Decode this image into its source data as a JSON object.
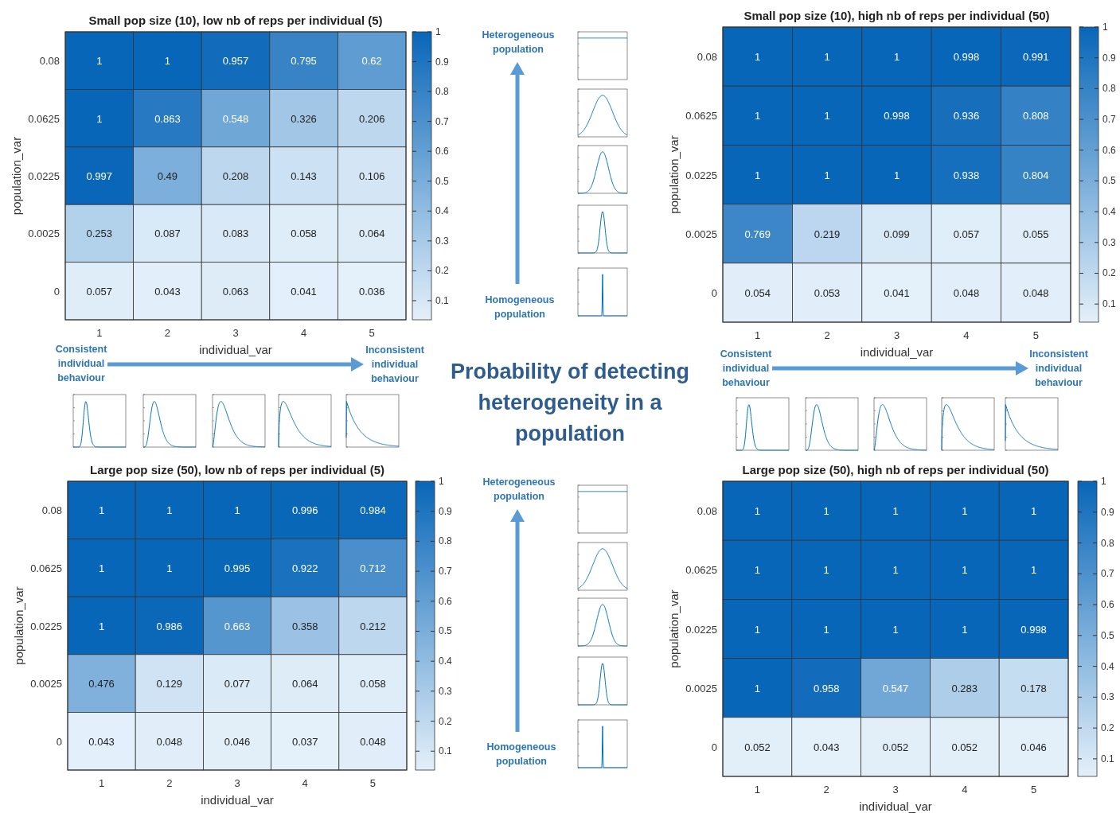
{
  "chart_data": [
    {
      "type": "heatmap",
      "title": "Small pop size (10), low nb of reps per individual (5)",
      "xlabel": "individual_var",
      "ylabel": "population_var",
      "categories": [
        "1",
        "2",
        "3",
        "4",
        "5"
      ],
      "y_categories": [
        "0.08",
        "0.0625",
        "0.0225",
        "0.0025",
        "0"
      ],
      "cells": [
        [
          1,
          1,
          0.957,
          0.795,
          0.62
        ],
        [
          1,
          0.863,
          0.548,
          0.326,
          0.206
        ],
        [
          0.997,
          0.49,
          0.208,
          0.143,
          0.106
        ],
        [
          0.253,
          0.087,
          0.083,
          0.058,
          0.064
        ],
        [
          0.057,
          0.043,
          0.063,
          0.041,
          0.036
        ]
      ],
      "clim": [
        0.036,
        1
      ],
      "cticks": [
        0.1,
        0.2,
        0.3,
        0.4,
        0.5,
        0.6,
        0.7,
        0.8,
        0.9,
        1
      ],
      "data_labels": true,
      "annotations": [
        "Consistent individual behaviour",
        "Inconsistent individual behaviour",
        "Heterogeneous population",
        "Homogeneous population"
      ]
    },
    {
      "type": "heatmap",
      "title": "Small pop size (10), high nb of reps per individual (50)",
      "xlabel": "individual_var",
      "ylabel": "population_var",
      "categories": [
        "1",
        "2",
        "3",
        "4",
        "5"
      ],
      "y_categories": [
        "0.08",
        "0.0625",
        "0.0225",
        "0.0025",
        "0"
      ],
      "cells": [
        [
          1,
          1,
          1,
          0.998,
          0.991
        ],
        [
          1,
          1,
          0.998,
          0.936,
          0.808
        ],
        [
          1,
          1,
          1,
          0.938,
          0.804
        ],
        [
          0.769,
          0.219,
          0.099,
          0.057,
          0.055
        ],
        [
          0.054,
          0.053,
          0.041,
          0.048,
          0.048
        ]
      ],
      "clim": [
        0.041,
        1
      ],
      "cticks": [
        0.1,
        0.2,
        0.3,
        0.4,
        0.5,
        0.6,
        0.7,
        0.8,
        0.9,
        1
      ],
      "data_labels": true,
      "annotations": [
        "Consistent individual behaviour",
        "Inconsistent individual behaviour"
      ]
    },
    {
      "type": "heatmap",
      "title": "Large pop size (50), low nb of reps per individual (5)",
      "xlabel": "individual_var",
      "ylabel": "population_var",
      "categories": [
        "1",
        "2",
        "3",
        "4",
        "5"
      ],
      "y_categories": [
        "0.08",
        "0.0625",
        "0.0225",
        "0.0025",
        "0"
      ],
      "cells": [
        [
          1,
          1,
          1,
          0.996,
          0.984
        ],
        [
          1,
          1,
          0.995,
          0.922,
          0.712
        ],
        [
          1,
          0.986,
          0.663,
          0.358,
          0.212
        ],
        [
          0.476,
          0.129,
          0.077,
          0.064,
          0.058
        ],
        [
          0.043,
          0.048,
          0.046,
          0.037,
          0.048
        ]
      ],
      "clim": [
        0.037,
        1
      ],
      "cticks": [
        0.1,
        0.2,
        0.3,
        0.4,
        0.5,
        0.6,
        0.7,
        0.8,
        0.9,
        1
      ],
      "data_labels": true,
      "annotations": [
        "Heterogeneous population",
        "Homogeneous population"
      ]
    },
    {
      "type": "heatmap",
      "title": "Large pop size (50), high nb of reps per individual (50)",
      "xlabel": "individual_var",
      "ylabel": "population_var",
      "categories": [
        "1",
        "2",
        "3",
        "4",
        "5"
      ],
      "y_categories": [
        "0.08",
        "0.0625",
        "0.0225",
        "0.0025",
        "0"
      ],
      "cells": [
        [
          1,
          1,
          1,
          1,
          1
        ],
        [
          1,
          1,
          1,
          1,
          1
        ],
        [
          1,
          1,
          1,
          1,
          0.998
        ],
        [
          1,
          0.958,
          0.547,
          0.283,
          0.178
        ],
        [
          0.052,
          0.043,
          0.052,
          0.052,
          0.046
        ]
      ],
      "clim": [
        0.043,
        1
      ],
      "cticks": [
        0.1,
        0.2,
        0.3,
        0.4,
        0.5,
        0.6,
        0.7,
        0.8,
        0.9,
        1
      ],
      "data_labels": true
    },
    {
      "type": "other",
      "title": "Probability of detecting heterogeneity in a population"
    }
  ]
}
